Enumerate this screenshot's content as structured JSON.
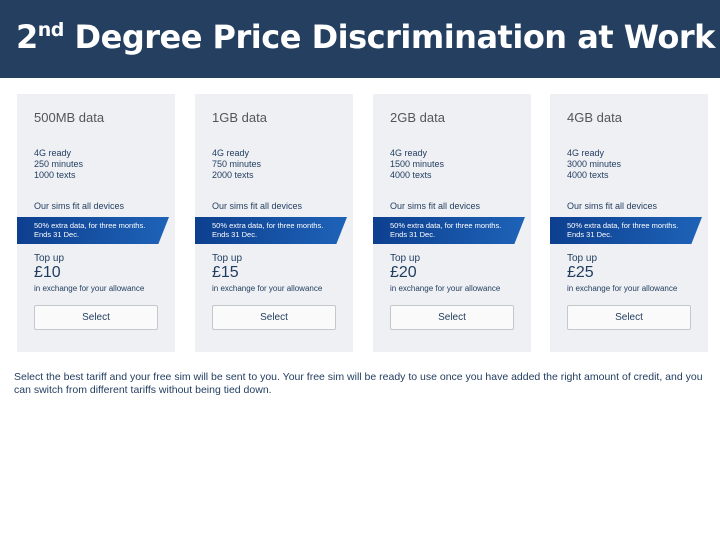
{
  "header": {
    "title_number": "2",
    "title_superscript": "nd",
    "title_text": "Degree Price Discrimination at Work"
  },
  "cards": [
    {
      "plan": "500MB data",
      "features": [
        "4G ready",
        "250 minutes",
        "1000 texts"
      ],
      "sims": "Our sims fit all devices",
      "promo": [
        "50% extra data, for three months.",
        "Ends 31 Dec."
      ],
      "topup_label": "Top up",
      "price": "£10",
      "note": "in exchange for your allowance",
      "button": "Select"
    },
    {
      "plan": "1GB data",
      "features": [
        "4G ready",
        "750 minutes",
        "2000 texts"
      ],
      "sims": "Our sims fit all devices",
      "promo": [
        "50% extra data, for three months.",
        "Ends 31 Dec."
      ],
      "topup_label": "Top up",
      "price": "£15",
      "note": "in exchange for your allowance",
      "button": "Select"
    },
    {
      "plan": "2GB data",
      "features": [
        "4G ready",
        "1500 minutes",
        "4000 texts"
      ],
      "sims": "Our sims fit all devices",
      "promo": [
        "50% extra data, for three months.",
        "Ends 31 Dec."
      ],
      "topup_label": "Top up",
      "price": "£20",
      "note": "in exchange for your allowance",
      "button": "Select"
    },
    {
      "plan": "4GB data",
      "features": [
        "4G ready",
        "3000 minutes",
        "4000 texts"
      ],
      "sims": "Our sims fit all devices",
      "promo": [
        "50% extra data, for three months.",
        "Ends 31 Dec."
      ],
      "topup_label": "Top up",
      "price": "£25",
      "note": "in exchange for your allowance",
      "button": "Select"
    }
  ],
  "caption": "Select the best tariff and your free sim will be sent to you. Your free sim will be ready to use once you have added the right amount of credit, and you can switch from different tariffs without being tied down."
}
